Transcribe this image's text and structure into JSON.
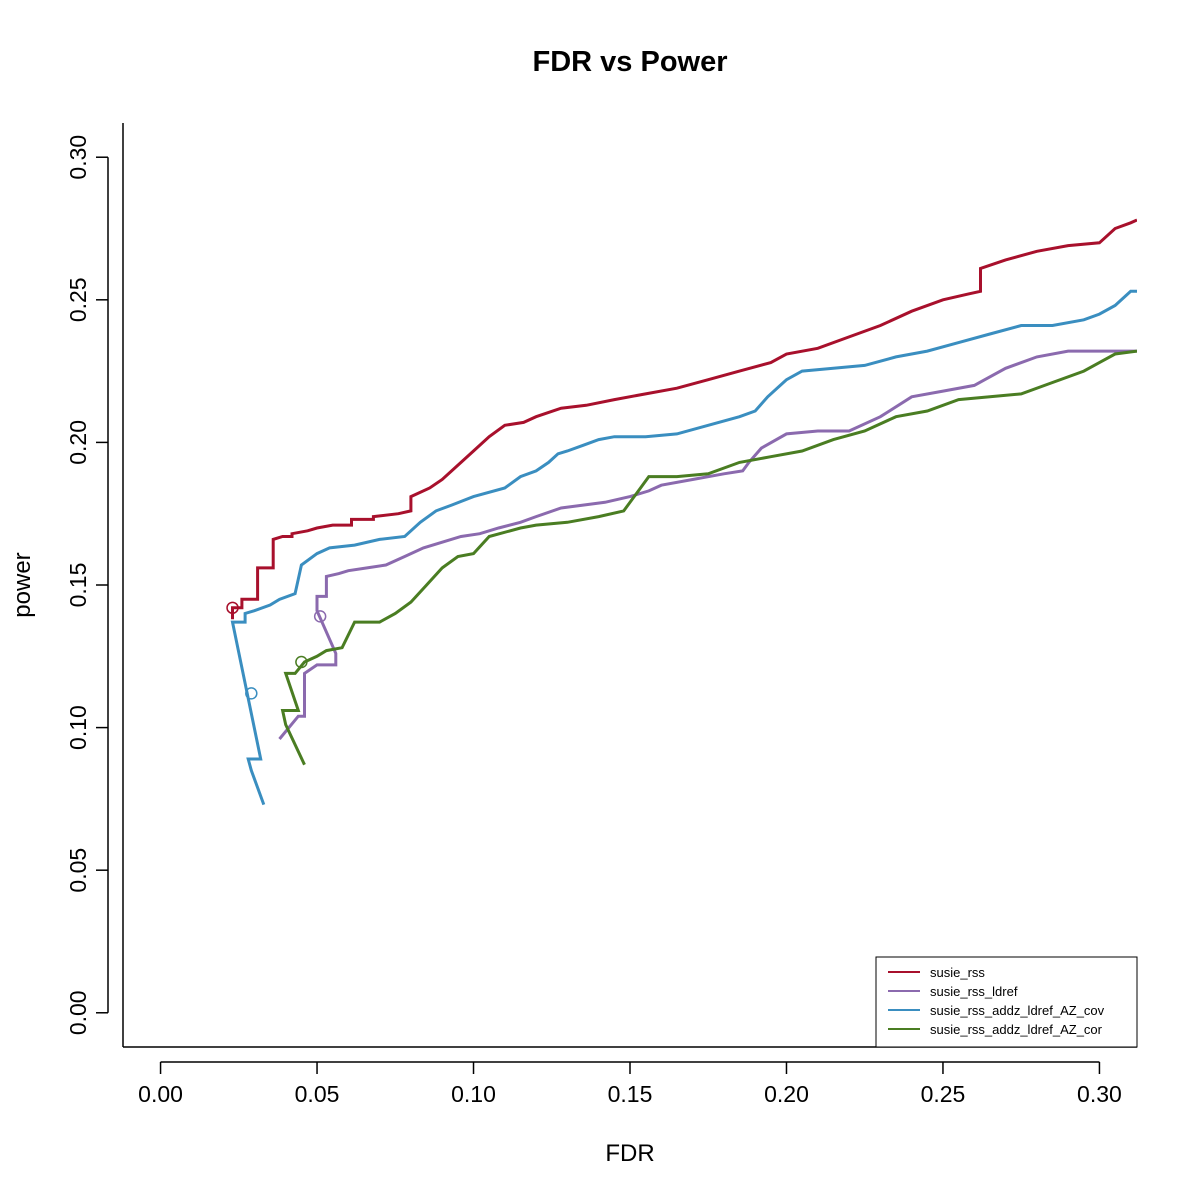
{
  "chart_data": {
    "type": "line",
    "title": "FDR vs Power",
    "xlabel": "FDR",
    "ylabel": "power",
    "xlim": [
      -0.012,
      0.312
    ],
    "ylim": [
      -0.012,
      0.312
    ],
    "xticks": [
      0.0,
      0.05,
      0.1,
      0.15,
      0.2,
      0.25,
      0.3
    ],
    "xtick_labels": [
      "0.00",
      "0.05",
      "0.10",
      "0.15",
      "0.20",
      "0.25",
      "0.30"
    ],
    "yticks": [
      0.0,
      0.05,
      0.1,
      0.15,
      0.2,
      0.25,
      0.3
    ],
    "ytick_labels": [
      "0.00",
      "0.05",
      "0.10",
      "0.15",
      "0.20",
      "0.25",
      "0.30"
    ],
    "grid": false,
    "legend_position": "bottom-right",
    "series": [
      {
        "name": "susie_rss",
        "color": "#a8102c",
        "marker": {
          "x": 0.023,
          "y": 0.142
        },
        "points": [
          [
            0.023,
            0.138
          ],
          [
            0.023,
            0.142
          ],
          [
            0.026,
            0.142
          ],
          [
            0.026,
            0.145
          ],
          [
            0.031,
            0.145
          ],
          [
            0.031,
            0.156
          ],
          [
            0.036,
            0.156
          ],
          [
            0.036,
            0.166
          ],
          [
            0.039,
            0.167
          ],
          [
            0.042,
            0.167
          ],
          [
            0.042,
            0.168
          ],
          [
            0.047,
            0.169
          ],
          [
            0.05,
            0.17
          ],
          [
            0.055,
            0.171
          ],
          [
            0.061,
            0.171
          ],
          [
            0.061,
            0.173
          ],
          [
            0.068,
            0.173
          ],
          [
            0.068,
            0.174
          ],
          [
            0.076,
            0.175
          ],
          [
            0.08,
            0.176
          ],
          [
            0.08,
            0.181
          ],
          [
            0.086,
            0.184
          ],
          [
            0.09,
            0.187
          ],
          [
            0.096,
            0.193
          ],
          [
            0.1,
            0.197
          ],
          [
            0.105,
            0.202
          ],
          [
            0.11,
            0.206
          ],
          [
            0.116,
            0.207
          ],
          [
            0.12,
            0.209
          ],
          [
            0.128,
            0.212
          ],
          [
            0.136,
            0.213
          ],
          [
            0.145,
            0.215
          ],
          [
            0.155,
            0.217
          ],
          [
            0.165,
            0.219
          ],
          [
            0.175,
            0.222
          ],
          [
            0.185,
            0.225
          ],
          [
            0.195,
            0.228
          ],
          [
            0.2,
            0.231
          ],
          [
            0.21,
            0.233
          ],
          [
            0.22,
            0.237
          ],
          [
            0.23,
            0.241
          ],
          [
            0.24,
            0.246
          ],
          [
            0.25,
            0.25
          ],
          [
            0.258,
            0.252
          ],
          [
            0.262,
            0.253
          ],
          [
            0.262,
            0.261
          ],
          [
            0.27,
            0.264
          ],
          [
            0.28,
            0.267
          ],
          [
            0.29,
            0.269
          ],
          [
            0.3,
            0.27
          ],
          [
            0.305,
            0.275
          ],
          [
            0.31,
            0.277
          ],
          [
            0.312,
            0.278
          ]
        ]
      },
      {
        "name": "susie_rss_ldref",
        "color": "#8b6aae",
        "marker": {
          "x": 0.051,
          "y": 0.139
        },
        "points": [
          [
            0.038,
            0.096
          ],
          [
            0.044,
            0.104
          ],
          [
            0.046,
            0.104
          ],
          [
            0.046,
            0.119
          ],
          [
            0.05,
            0.122
          ],
          [
            0.056,
            0.122
          ],
          [
            0.056,
            0.126
          ],
          [
            0.05,
            0.141
          ],
          [
            0.05,
            0.146
          ],
          [
            0.053,
            0.146
          ],
          [
            0.053,
            0.153
          ],
          [
            0.057,
            0.154
          ],
          [
            0.06,
            0.155
          ],
          [
            0.066,
            0.156
          ],
          [
            0.072,
            0.157
          ],
          [
            0.078,
            0.16
          ],
          [
            0.084,
            0.163
          ],
          [
            0.09,
            0.165
          ],
          [
            0.096,
            0.167
          ],
          [
            0.102,
            0.168
          ],
          [
            0.108,
            0.17
          ],
          [
            0.115,
            0.172
          ],
          [
            0.12,
            0.174
          ],
          [
            0.128,
            0.177
          ],
          [
            0.135,
            0.178
          ],
          [
            0.142,
            0.179
          ],
          [
            0.15,
            0.181
          ],
          [
            0.156,
            0.183
          ],
          [
            0.16,
            0.185
          ],
          [
            0.17,
            0.187
          ],
          [
            0.18,
            0.189
          ],
          [
            0.186,
            0.19
          ],
          [
            0.188,
            0.193
          ],
          [
            0.192,
            0.198
          ],
          [
            0.2,
            0.203
          ],
          [
            0.21,
            0.204
          ],
          [
            0.22,
            0.204
          ],
          [
            0.23,
            0.209
          ],
          [
            0.24,
            0.216
          ],
          [
            0.25,
            0.218
          ],
          [
            0.26,
            0.22
          ],
          [
            0.27,
            0.226
          ],
          [
            0.28,
            0.23
          ],
          [
            0.29,
            0.232
          ],
          [
            0.3,
            0.232
          ],
          [
            0.312,
            0.232
          ]
        ]
      },
      {
        "name": "susie_rss_addz_ldref_AZ_cov",
        "color": "#3a8ec0",
        "marker": {
          "x": 0.029,
          "y": 0.112
        },
        "points": [
          [
            0.033,
            0.073
          ],
          [
            0.029,
            0.085
          ],
          [
            0.028,
            0.089
          ],
          [
            0.032,
            0.089
          ],
          [
            0.023,
            0.137
          ],
          [
            0.027,
            0.137
          ],
          [
            0.027,
            0.14
          ],
          [
            0.03,
            0.141
          ],
          [
            0.035,
            0.143
          ],
          [
            0.038,
            0.145
          ],
          [
            0.043,
            0.147
          ],
          [
            0.045,
            0.157
          ],
          [
            0.05,
            0.161
          ],
          [
            0.054,
            0.163
          ],
          [
            0.062,
            0.164
          ],
          [
            0.07,
            0.166
          ],
          [
            0.078,
            0.167
          ],
          [
            0.083,
            0.172
          ],
          [
            0.088,
            0.176
          ],
          [
            0.093,
            0.178
          ],
          [
            0.1,
            0.181
          ],
          [
            0.11,
            0.184
          ],
          [
            0.115,
            0.188
          ],
          [
            0.12,
            0.19
          ],
          [
            0.124,
            0.193
          ],
          [
            0.127,
            0.196
          ],
          [
            0.13,
            0.197
          ],
          [
            0.135,
            0.199
          ],
          [
            0.14,
            0.201
          ],
          [
            0.145,
            0.202
          ],
          [
            0.155,
            0.202
          ],
          [
            0.165,
            0.203
          ],
          [
            0.175,
            0.206
          ],
          [
            0.185,
            0.209
          ],
          [
            0.19,
            0.211
          ],
          [
            0.194,
            0.216
          ],
          [
            0.2,
            0.222
          ],
          [
            0.205,
            0.225
          ],
          [
            0.215,
            0.226
          ],
          [
            0.225,
            0.227
          ],
          [
            0.235,
            0.23
          ],
          [
            0.245,
            0.232
          ],
          [
            0.255,
            0.235
          ],
          [
            0.265,
            0.238
          ],
          [
            0.275,
            0.241
          ],
          [
            0.285,
            0.241
          ],
          [
            0.295,
            0.243
          ],
          [
            0.3,
            0.245
          ],
          [
            0.305,
            0.248
          ],
          [
            0.31,
            0.253
          ],
          [
            0.312,
            0.253
          ]
        ]
      },
      {
        "name": "susie_rss_addz_ldref_AZ_cor",
        "color": "#4a7d22",
        "marker": {
          "x": 0.045,
          "y": 0.123
        },
        "points": [
          [
            0.046,
            0.087
          ],
          [
            0.04,
            0.101
          ],
          [
            0.039,
            0.106
          ],
          [
            0.044,
            0.106
          ],
          [
            0.04,
            0.119
          ],
          [
            0.043,
            0.119
          ],
          [
            0.046,
            0.123
          ],
          [
            0.05,
            0.125
          ],
          [
            0.053,
            0.127
          ],
          [
            0.058,
            0.128
          ],
          [
            0.062,
            0.137
          ],
          [
            0.07,
            0.137
          ],
          [
            0.075,
            0.14
          ],
          [
            0.08,
            0.144
          ],
          [
            0.085,
            0.15
          ],
          [
            0.09,
            0.156
          ],
          [
            0.095,
            0.16
          ],
          [
            0.1,
            0.161
          ],
          [
            0.105,
            0.167
          ],
          [
            0.115,
            0.17
          ],
          [
            0.12,
            0.171
          ],
          [
            0.13,
            0.172
          ],
          [
            0.14,
            0.174
          ],
          [
            0.148,
            0.176
          ],
          [
            0.152,
            0.182
          ],
          [
            0.156,
            0.188
          ],
          [
            0.165,
            0.188
          ],
          [
            0.175,
            0.189
          ],
          [
            0.185,
            0.193
          ],
          [
            0.195,
            0.195
          ],
          [
            0.205,
            0.197
          ],
          [
            0.215,
            0.201
          ],
          [
            0.225,
            0.204
          ],
          [
            0.235,
            0.209
          ],
          [
            0.245,
            0.211
          ],
          [
            0.255,
            0.215
          ],
          [
            0.265,
            0.216
          ],
          [
            0.275,
            0.217
          ],
          [
            0.285,
            0.221
          ],
          [
            0.295,
            0.225
          ],
          [
            0.3,
            0.228
          ],
          [
            0.305,
            0.231
          ],
          [
            0.312,
            0.232
          ]
        ]
      }
    ]
  }
}
